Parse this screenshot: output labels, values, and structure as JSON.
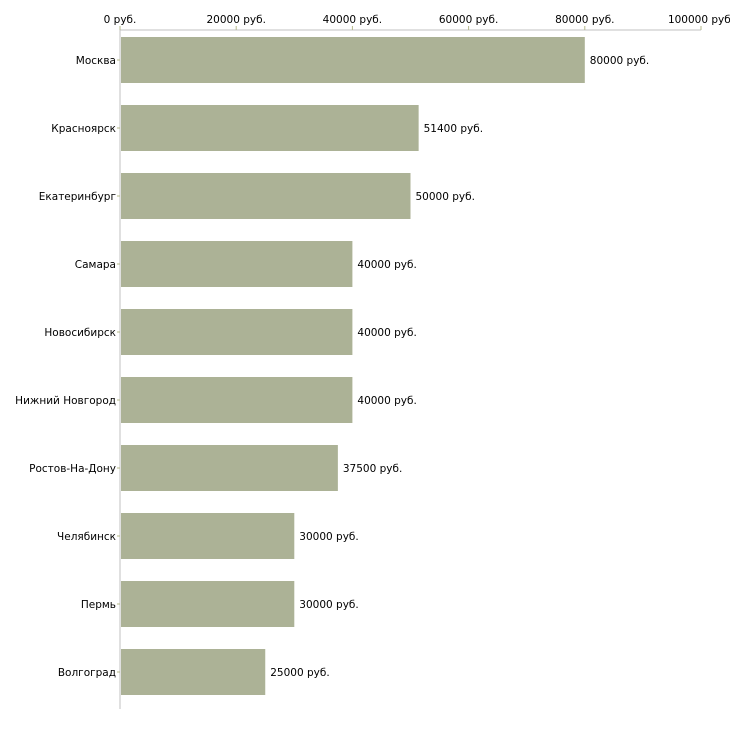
{
  "chart_data": {
    "type": "bar",
    "orientation": "horizontal",
    "title": "",
    "xlabel": "",
    "ylabel": "",
    "xlim": [
      0,
      100000
    ],
    "x_ticks": [
      "0 руб.",
      "20000 руб.",
      "40000 руб.",
      "60000 руб.",
      "80000 руб.",
      "100000 руб."
    ],
    "x_tick_values": [
      0,
      20000,
      40000,
      60000,
      80000,
      100000
    ],
    "categories": [
      "Москва",
      "Красноярск",
      "Екатеринбург",
      "Самара",
      "Новосибирск",
      "Нижний Новгород",
      "Ростов-На-Дону",
      "Челябинск",
      "Пермь",
      "Волгоград"
    ],
    "values": [
      80000,
      51400,
      50000,
      40000,
      40000,
      40000,
      37500,
      30000,
      30000,
      25000
    ],
    "data_labels": [
      "80000 руб.",
      "51400 руб.",
      "50000 руб.",
      "40000 руб.",
      "40000 руб.",
      "40000 руб.",
      "37500 руб.",
      "30000 руб.",
      "30000 руб.",
      "25000 руб."
    ],
    "grid": false,
    "colors": {
      "bar": "#acb296",
      "axis": "#c0c0c0",
      "tick": "#b5b88a"
    }
  }
}
